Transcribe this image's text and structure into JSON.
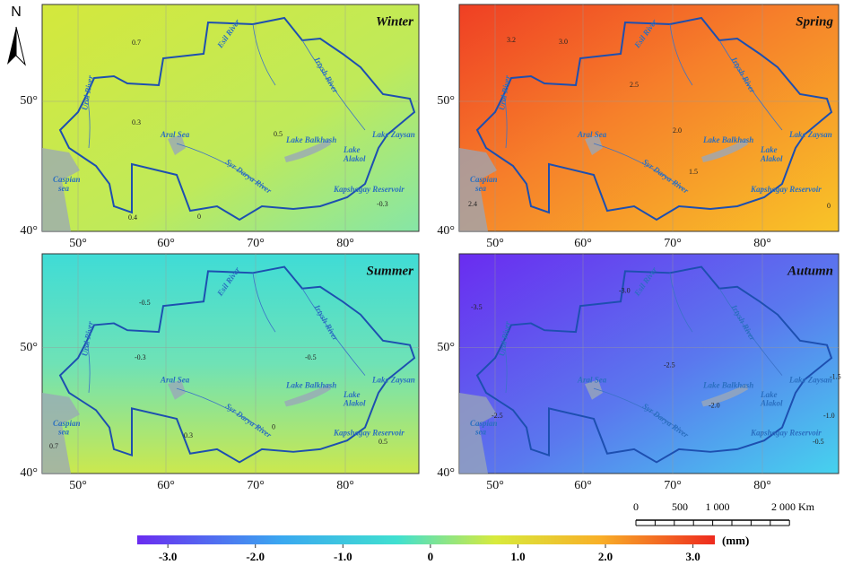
{
  "north": "N",
  "panels": [
    {
      "title": "Winter",
      "lat_labels": [
        "50°",
        "40°"
      ],
      "lon_labels": [
        "50°",
        "60°",
        "70°",
        "80°"
      ],
      "places": [
        "Ural River",
        "Aral Sea",
        "Syr Darya River",
        "Lake Balkhash",
        "Lake Zaysan",
        "Lake",
        "Alakol",
        "Kapshagay Reservoir",
        "Caspian",
        "sea",
        "Esil River",
        "Irtysh River"
      ],
      "contours": [
        "0.7",
        "0.3",
        "0.5",
        "-0.3",
        "0.4",
        "0"
      ]
    },
    {
      "title": "Spring",
      "lat_labels": [
        "50°",
        "40°"
      ],
      "lon_labels": [
        "50°",
        "60°",
        "70°",
        "80°"
      ],
      "places": [
        "Ural River",
        "Aral Sea",
        "Syr Darya River",
        "Lake Balkhash",
        "Lake Zaysan",
        "Lake",
        "Alakol",
        "Kapshagay Reservoir",
        "Caspian",
        "sea",
        "Esil River",
        "Irtysh River"
      ],
      "contours": [
        "3.2",
        "3.0",
        "2.5",
        "2.0",
        "1.5",
        "2.4",
        "0"
      ]
    },
    {
      "title": "Summer",
      "lat_labels": [
        "50°",
        "40°"
      ],
      "lon_labels": [
        "50°",
        "60°",
        "70°",
        "80°"
      ],
      "places": [
        "Ural River",
        "Aral Sea",
        "Syr Darya River",
        "Lake Balkhash",
        "Lake Zaysan",
        "Lake",
        "Alakol",
        "Kapshagay Reservoir",
        "Caspian",
        "sea",
        "Esil River",
        "Irtysh River"
      ],
      "contours": [
        "-0.5",
        "-0.3",
        "-0.5",
        "0",
        "0.3",
        "0.5",
        "0.7"
      ]
    },
    {
      "title": "Autumn",
      "lat_labels": [
        "50°",
        "40°"
      ],
      "lon_labels": [
        "50°",
        "60°",
        "70°",
        "80°"
      ],
      "places": [
        "Ural River",
        "Aral Sea",
        "Syr Darya River",
        "Lake Balkhash",
        "Lake Zaysan",
        "Lake",
        "Alakol",
        "Kapshagay Reservoir",
        "Caspian",
        "sea",
        "Esil River",
        "Irtysh River"
      ],
      "contours": [
        "-3.5",
        "-3.0",
        "-2.5",
        "-2.0",
        "-2.5",
        "-1.5",
        "-1.0",
        "-0.5"
      ]
    }
  ],
  "scale_bar": {
    "labels": [
      "0",
      "500",
      "1 000",
      "2 000 Km"
    ]
  },
  "colorbar": {
    "unit": "(mm)",
    "range": [
      -3.35,
      3.25
    ],
    "ticks": [
      {
        "value": -3,
        "label": "-3.0"
      },
      {
        "value": -2,
        "label": "-2.0"
      },
      {
        "value": -1,
        "label": "-1.0"
      },
      0,
      {
        "value": 1,
        "label": "1.0"
      },
      {
        "value": 2,
        "label": "2.0"
      },
      {
        "value": 3,
        "label": "3.0"
      }
    ]
  }
}
